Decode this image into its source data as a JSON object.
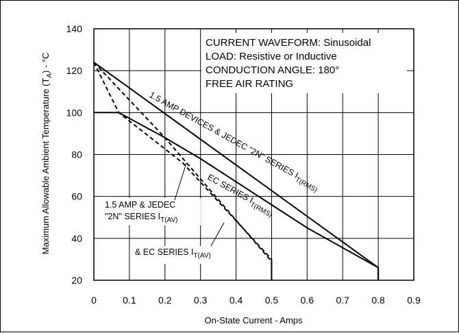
{
  "chart_data": {
    "type": "line",
    "xlabel": "On-State Current - Amps",
    "ylabel": "Maximum Allowable Ambient Temperature (T",
    "ylabel_sub": "A",
    "ylabel_tail": ") - °C",
    "xlim": [
      0,
      0.9
    ],
    "ylim": [
      20,
      140
    ],
    "x_ticks": [
      "0",
      "0.1",
      "0.2",
      "0.3",
      "0.4",
      "0.5",
      "0.6",
      "0.7",
      "0.8",
      "0.9"
    ],
    "y_ticks": [
      "20",
      "40",
      "60",
      "80",
      "100",
      "120",
      "140"
    ],
    "grid": true,
    "conditions": [
      "CURRENT WAVEFORM: Sinusoidal",
      "LOAD: Resistive or Inductive",
      "CONDUCTION ANGLE: 180°",
      "FREE AIR RATING"
    ],
    "series": [
      {
        "name": "1.5 AMP DEVICES & JEDEC \"2N\" SERIES I T(RMS)",
        "style": "solid",
        "x": [
          0,
          0.8,
          0.8
        ],
        "y": [
          124,
          26,
          20
        ]
      },
      {
        "name": "EC SERIES I T(RMS)",
        "style": "solid",
        "x": [
          0,
          0.07,
          0.2,
          0.3,
          0.4,
          0.5,
          0.6,
          0.8,
          0.8
        ],
        "y": [
          100,
          100,
          88,
          78,
          67,
          56,
          45,
          26,
          20
        ]
      },
      {
        "name": "1.5 AMP & JEDEC \"2N\" SERIES I T(AV)",
        "style": "dashed",
        "x": [
          0,
          0.2,
          0.5,
          0.5
        ],
        "y": [
          124,
          88,
          29,
          20
        ]
      },
      {
        "name": "& EC SERIES I T(AV)",
        "style": "dashed",
        "x": [
          0,
          0.07,
          0.25,
          0.5,
          0.5
        ],
        "y": [
          124,
          100,
          76,
          30,
          20
        ]
      }
    ],
    "labels": {
      "rms_main": "1.5 AMP DEVICES & JEDEC \"2N\" SERIES I",
      "rms_sub": "T(RMS)",
      "ec_rms_main": "EC SERIES I",
      "ec_rms_sub": "T(RMS)",
      "av_line1": "1.5 AMP & JEDEC",
      "av_line2": "\"2N\" SERIES I",
      "av_sub": "T(AV)",
      "ec_av_main": "& EC SERIES I",
      "ec_av_sub": "T(AV)"
    }
  }
}
